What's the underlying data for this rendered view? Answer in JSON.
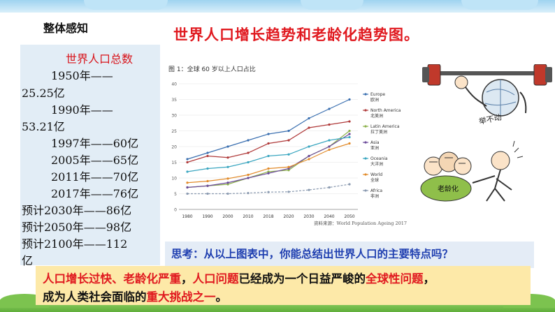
{
  "header": {
    "section": "整体感知",
    "title": "世界人口增长趋势和老龄化趋势图。"
  },
  "population": {
    "heading": "世界人口总数",
    "lines": [
      "1950年——",
      "25.25亿",
      "1990年——",
      "53.21亿",
      "1997年——60亿",
      "2005年——65亿",
      "2011年——70亿",
      "2017年——76亿",
      "预计2030年——86亿",
      "预计2050年——98亿",
      "预计2100年——112",
      "亿"
    ]
  },
  "chart": {
    "caption": "图 1：全球 60 岁以上人口占比",
    "source": "资料来源：World Population Ageing 2017"
  },
  "cartoon": {
    "label1": "举不动",
    "label2": "老龄化"
  },
  "question": {
    "text": "思考：从以上图表中，你能总结出世界人口的主要特点吗？"
  },
  "conclusion": {
    "p1": "人口增长过快、老龄化严重",
    "p2": "，",
    "p3": "人口问题",
    "p4": "已经成为一个日益严峻的",
    "p5": "全球性问题",
    "p6": "，",
    "p7": "成为人类社会面临的",
    "p8": "重大挑战之一",
    "p9": "。"
  },
  "colors": {
    "title_red": "#e0191f",
    "question_blue": "#1f3fb0",
    "panel_blue": "#e2edf6",
    "conclusion_bg": "#fde9a8"
  },
  "chart_data": {
    "type": "line",
    "x": [
      "1980",
      "1990",
      "2000",
      "2010",
      "2018",
      "2020",
      "2030",
      "2040",
      "2050"
    ],
    "ylim": [
      0,
      40
    ],
    "yticks": [
      0,
      5,
      10,
      15,
      20,
      25,
      30,
      35,
      40
    ],
    "series": [
      {
        "name": "Europe",
        "name_cn": "欧洲",
        "color": "#3a6fb0",
        "values": [
          16,
          18,
          20,
          22,
          24,
          25,
          29,
          32,
          35
        ]
      },
      {
        "name": "North America",
        "name_cn": "北美洲",
        "color": "#b03a3a",
        "values": [
          15,
          17,
          16.5,
          18,
          21,
          22,
          26,
          27,
          28
        ]
      },
      {
        "name": "Latin America",
        "name_cn": "拉丁美洲",
        "color": "#8bb04a",
        "values": [
          7,
          7.5,
          8,
          10,
          12,
          12.5,
          17,
          20,
          25
        ]
      },
      {
        "name": "Asia",
        "name_cn": "亚洲",
        "color": "#6b4a9a",
        "values": [
          7,
          7.5,
          8.5,
          10,
          11.5,
          13,
          17,
          20,
          24
        ]
      },
      {
        "name": "Oceania",
        "name_cn": "大洋洲",
        "color": "#3aa6c0",
        "values": [
          12,
          13,
          13.5,
          15,
          17,
          17.5,
          20,
          22,
          23
        ]
      },
      {
        "name": "World",
        "name_cn": "全球",
        "color": "#e28b2a",
        "values": [
          8.5,
          9,
          9.8,
          11,
          13,
          13.5,
          16,
          19,
          21
        ]
      },
      {
        "name": "Africa",
        "name_cn": "非洲",
        "color": "#8a9ab0",
        "values": [
          5,
          5,
          5,
          5.2,
          5.5,
          5.6,
          6.2,
          7,
          8
        ]
      }
    ]
  }
}
